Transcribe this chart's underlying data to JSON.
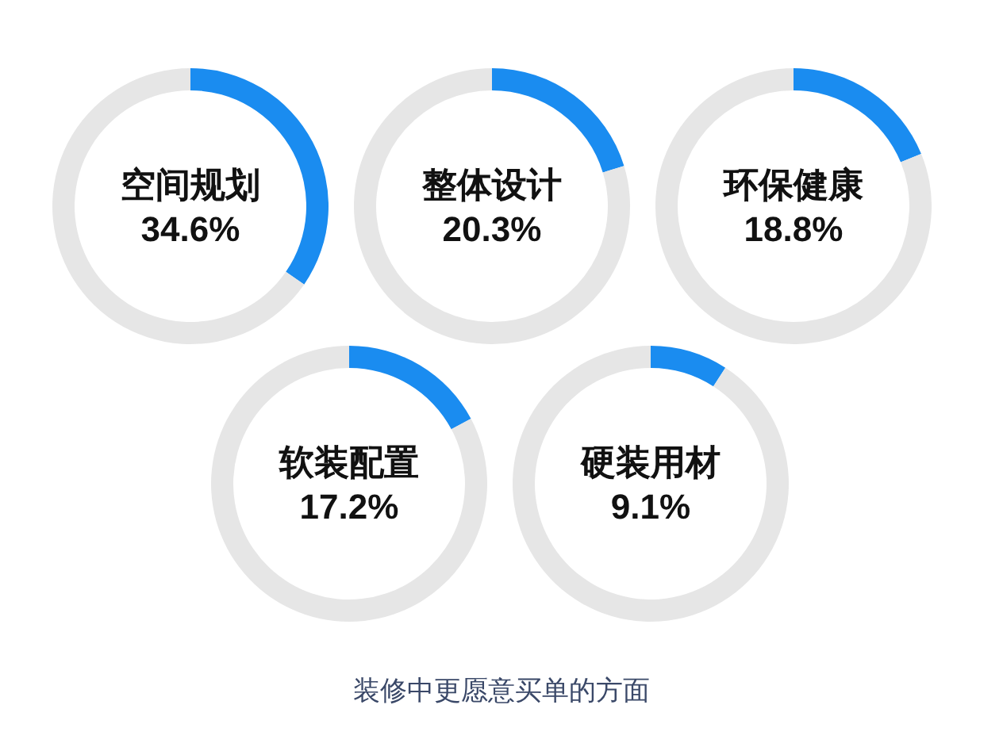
{
  "chart_data": [
    {
      "type": "donut",
      "categories": [
        "空间规划",
        null
      ],
      "values": [
        34.6,
        65.4
      ],
      "colors": [
        "#1a8cf0",
        "#e6e6e6"
      ],
      "value_labels": [
        "34.6%",
        null
      ]
    },
    {
      "type": "donut",
      "categories": [
        "整体设计",
        null
      ],
      "values": [
        20.3,
        79.7
      ],
      "colors": [
        "#1a8cf0",
        "#e6e6e6"
      ],
      "value_labels": [
        "20.3%",
        null
      ]
    },
    {
      "type": "donut",
      "categories": [
        "环保健康",
        null
      ],
      "values": [
        18.8,
        81.2
      ],
      "colors": [
        "#1a8cf0",
        "#e6e6e6"
      ],
      "value_labels": [
        "18.8%",
        null
      ]
    },
    {
      "type": "donut",
      "categories": [
        "软装配置",
        null
      ],
      "values": [
        17.2,
        82.8
      ],
      "colors": [
        "#1a8cf0",
        "#e6e6e6"
      ],
      "value_labels": [
        "17.2%",
        null
      ]
    },
    {
      "type": "donut",
      "categories": [
        "硬装用材",
        null
      ],
      "values": [
        9.1,
        90.9
      ],
      "colors": [
        "#1a8cf0",
        "#e6e6e6"
      ],
      "value_labels": [
        "9.1%",
        null
      ]
    },
    {
      "type": "other",
      "title": "装修中更愿意买单的方面"
    }
  ]
}
